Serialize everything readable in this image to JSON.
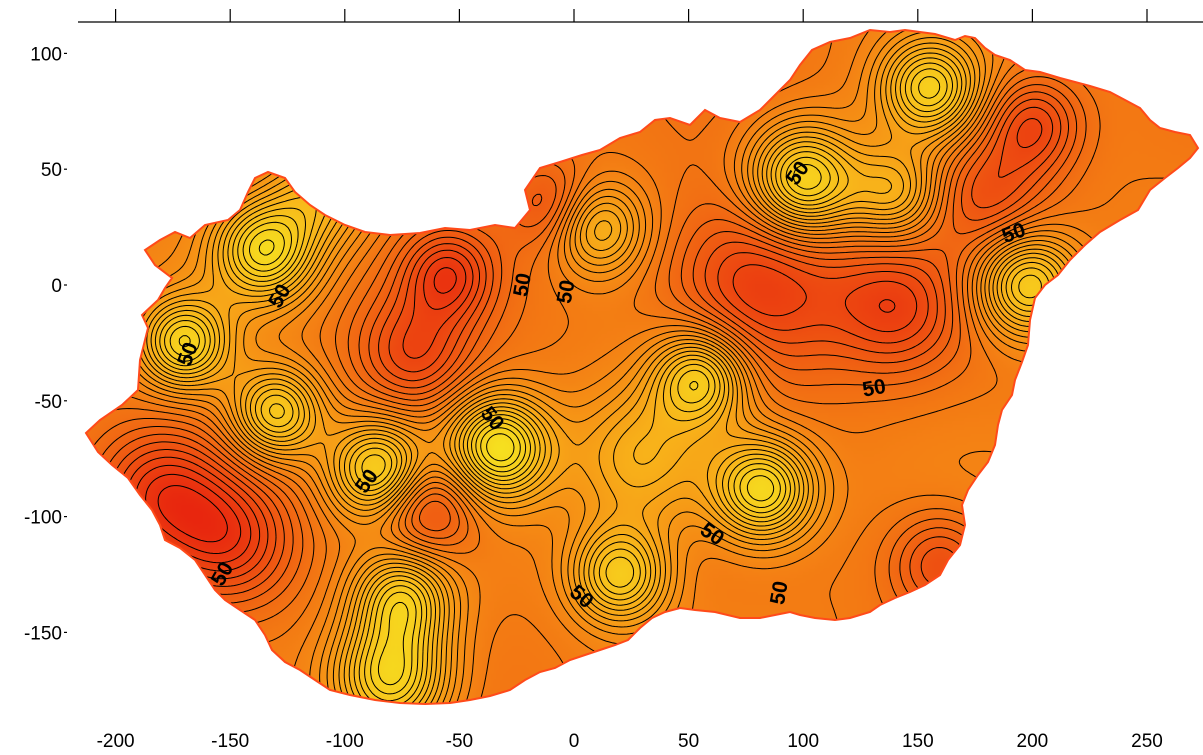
{
  "chart_data": {
    "type": "heatmap",
    "title": "",
    "xlabel": "",
    "ylabel": "",
    "xlim": [
      -210,
      270
    ],
    "ylim": [
      -190,
      115
    ],
    "x_ticks": [
      -200,
      -150,
      -100,
      -50,
      0,
      50,
      100,
      150,
      200,
      250
    ],
    "y_ticks": [
      100,
      50,
      0,
      -50,
      -100,
      -150
    ],
    "x_tick_labels": [
      "-200",
      "-150",
      "-100",
      "-50",
      "0",
      "50",
      "100",
      "150",
      "200",
      "250"
    ],
    "y_tick_labels": [
      "100",
      "50",
      "0",
      "-50",
      "-100",
      "-150"
    ],
    "grid": false,
    "colormap": [
      "#e8260e",
      "#ef5a12",
      "#f58a14",
      "#f8b41a",
      "#f6e01f"
    ],
    "region_outline_color": "#ff4a1a",
    "contour_line_color": "#000000",
    "contour_labels": [
      {
        "text": "50",
        "x": 98,
        "y": 48,
        "rotation": -55
      },
      {
        "text": "50",
        "x": 192,
        "y": 22,
        "rotation": -20
      },
      {
        "text": "50",
        "x": -128,
        "y": -5,
        "rotation": -60
      },
      {
        "text": "50",
        "x": -22,
        "y": 0,
        "rotation": -80
      },
      {
        "text": "50",
        "x": -3,
        "y": -3,
        "rotation": -80
      },
      {
        "text": "50",
        "x": -168,
        "y": -30,
        "rotation": -70
      },
      {
        "text": "50",
        "x": 131,
        "y": -45,
        "rotation": -10
      },
      {
        "text": "50",
        "x": -36,
        "y": -58,
        "rotation": 50
      },
      {
        "text": "50",
        "x": -90,
        "y": -85,
        "rotation": -55
      },
      {
        "text": "50",
        "x": 60,
        "y": -108,
        "rotation": 35
      },
      {
        "text": "50",
        "x": 3,
        "y": -135,
        "rotation": 40
      },
      {
        "text": "50",
        "x": 90,
        "y": -133,
        "rotation": -80
      },
      {
        "text": "50",
        "x": -153,
        "y": -125,
        "rotation": -60
      }
    ],
    "hotspots": [
      {
        "x": 100,
        "y": 45,
        "intensity": 1.0,
        "spread": 17
      },
      {
        "x": -135,
        "y": 15,
        "intensity": 0.9,
        "spread": 16
      },
      {
        "x": -170,
        "y": -25,
        "intensity": 0.85,
        "spread": 14
      },
      {
        "x": -130,
        "y": -55,
        "intensity": 0.8,
        "spread": 14
      },
      {
        "x": -33,
        "y": -70,
        "intensity": 1.0,
        "spread": 16
      },
      {
        "x": -85,
        "y": -80,
        "intensity": 0.9,
        "spread": 15
      },
      {
        "x": 82,
        "y": -88,
        "intensity": 1.0,
        "spread": 16
      },
      {
        "x": 55,
        "y": -40,
        "intensity": 0.85,
        "spread": 15
      },
      {
        "x": 20,
        "y": -125,
        "intensity": 0.8,
        "spread": 15
      },
      {
        "x": -75,
        "y": -135,
        "intensity": 0.75,
        "spread": 15
      },
      {
        "x": -80,
        "y": -170,
        "intensity": 0.95,
        "spread": 18
      },
      {
        "x": 198,
        "y": 0,
        "intensity": 0.9,
        "spread": 16
      },
      {
        "x": 155,
        "y": 85,
        "intensity": 0.8,
        "spread": 15
      },
      {
        "x": 10,
        "y": 25,
        "intensity": 0.6,
        "spread": 14
      },
      {
        "x": 140,
        "y": 40,
        "intensity": 0.55,
        "spread": 14
      },
      {
        "x": 30,
        "y": -75,
        "intensity": 0.6,
        "spread": 22
      },
      {
        "x": -110,
        "y": 40,
        "intensity": 0.5,
        "spread": 16
      }
    ],
    "coldspots": [
      {
        "x": 80,
        "y": 0,
        "intensity": 1.0,
        "spread": 28
      },
      {
        "x": -55,
        "y": 5,
        "intensity": 0.8,
        "spread": 14
      },
      {
        "x": -65,
        "y": -95,
        "intensity": 0.9,
        "spread": 16
      },
      {
        "x": -70,
        "y": -30,
        "intensity": 0.7,
        "spread": 18
      },
      {
        "x": 200,
        "y": 70,
        "intensity": 0.8,
        "spread": 15
      },
      {
        "x": -180,
        "y": -90,
        "intensity": 0.8,
        "spread": 20
      },
      {
        "x": 160,
        "y": -120,
        "intensity": 0.7,
        "spread": 16
      },
      {
        "x": -150,
        "y": -110,
        "intensity": 0.8,
        "spread": 20
      },
      {
        "x": 180,
        "y": 40,
        "intensity": 0.6,
        "spread": 18
      },
      {
        "x": 140,
        "y": -10,
        "intensity": 0.7,
        "spread": 20
      },
      {
        "x": -10,
        "y": 35,
        "intensity": 0.6,
        "spread": 14
      }
    ]
  }
}
